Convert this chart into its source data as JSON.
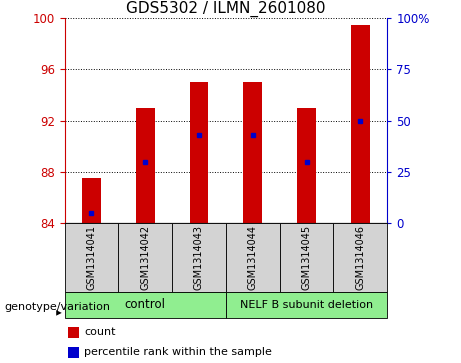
{
  "title": "GDS5302 / ILMN_2601080",
  "categories": [
    "GSM1314041",
    "GSM1314042",
    "GSM1314043",
    "GSM1314044",
    "GSM1314045",
    "GSM1314046"
  ],
  "count_values": [
    87.5,
    93.0,
    95.0,
    95.0,
    93.0,
    99.5
  ],
  "percentile_right": [
    5.0,
    30.0,
    43.0,
    43.0,
    30.0,
    50.0
  ],
  "ylim_left": [
    84,
    100
  ],
  "ylim_right": [
    0,
    100
  ],
  "yticks_left": [
    84,
    88,
    92,
    96,
    100
  ],
  "yticks_right": [
    0,
    25,
    50,
    75,
    100
  ],
  "ytick_labels_right": [
    "0",
    "25",
    "50",
    "75",
    "100%"
  ],
  "bar_color": "#cc0000",
  "dot_color": "#0000cc",
  "bar_width": 0.35,
  "legend_items": [
    {
      "color": "#cc0000",
      "label": "count"
    },
    {
      "color": "#0000cc",
      "label": "percentile rank within the sample"
    }
  ],
  "title_fontsize": 11,
  "tick_fontsize": 8.5,
  "label_fontsize": 8
}
